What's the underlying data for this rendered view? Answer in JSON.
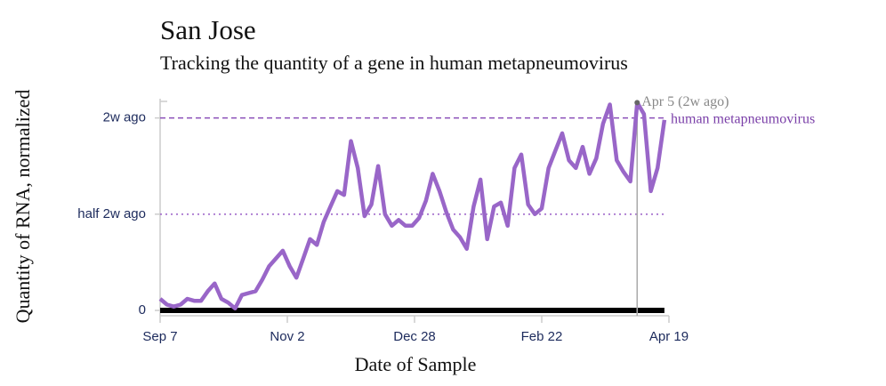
{
  "chart_data": {
    "type": "line",
    "title": "San Jose",
    "subtitle": "Tracking the quantity of a gene in human metapneumovirus",
    "x_label": "Date of Sample",
    "y_label": "Quantity of RNA, normalized",
    "x": [
      "Sep 7",
      "Sep 10",
      "Sep 13",
      "Sep 16",
      "Sep 19",
      "Sep 22",
      "Sep 25",
      "Sep 28",
      "Oct 1",
      "Oct 4",
      "Oct 7",
      "Oct 10",
      "Oct 13",
      "Oct 16",
      "Oct 19",
      "Oct 22",
      "Oct 25",
      "Oct 28",
      "Oct 31",
      "Nov 3",
      "Nov 6",
      "Nov 9",
      "Nov 12",
      "Nov 15",
      "Nov 18",
      "Nov 21",
      "Nov 24",
      "Nov 27",
      "Nov 30",
      "Dec 3",
      "Dec 6",
      "Dec 9",
      "Dec 12",
      "Dec 15",
      "Dec 18",
      "Dec 21",
      "Dec 24",
      "Dec 27",
      "Dec 30",
      "Jan 2",
      "Jan 5",
      "Jan 8",
      "Jan 11",
      "Jan 14",
      "Jan 17",
      "Jan 20",
      "Jan 23",
      "Jan 26",
      "Jan 29",
      "Feb 1",
      "Feb 4",
      "Feb 7",
      "Feb 10",
      "Feb 13",
      "Feb 16",
      "Feb 19",
      "Feb 22",
      "Feb 25",
      "Feb 28",
      "Mar 3",
      "Mar 6",
      "Mar 9",
      "Mar 12",
      "Mar 15",
      "Mar 18",
      "Mar 21",
      "Mar 24",
      "Mar 27",
      "Mar 30",
      "Apr 2",
      "Apr 5",
      "Apr 8",
      "Apr 11",
      "Apr 14",
      "Apr 17"
    ],
    "series": [
      {
        "name": "human metapneumovirus",
        "color": "#9966c8",
        "values": [
          0.06,
          0.03,
          0.02,
          0.03,
          0.06,
          0.05,
          0.05,
          0.1,
          0.14,
          0.06,
          0.04,
          0.01,
          0.08,
          0.09,
          0.1,
          0.16,
          0.23,
          0.27,
          0.31,
          0.23,
          0.17,
          0.27,
          0.37,
          0.34,
          0.46,
          0.54,
          0.62,
          0.6,
          0.88,
          0.74,
          0.49,
          0.55,
          0.75,
          0.5,
          0.44,
          0.47,
          0.44,
          0.44,
          0.48,
          0.57,
          0.71,
          0.62,
          0.51,
          0.42,
          0.38,
          0.32,
          0.54,
          0.68,
          0.37,
          0.54,
          0.56,
          0.44,
          0.74,
          0.81,
          0.55,
          0.5,
          0.53,
          0.74,
          0.83,
          0.92,
          0.78,
          0.74,
          0.85,
          0.71,
          0.79,
          0.97,
          1.07,
          0.78,
          0.72,
          0.67,
          1.08,
          1.02,
          0.62,
          0.74,
          0.99
        ]
      }
    ],
    "xlim": [
      "Sep 7",
      "Apr 19"
    ],
    "xticks": [
      "Sep 7",
      "Nov 2",
      "Dec 28",
      "Feb 22",
      "Apr 19"
    ],
    "ylim": [
      0,
      1.1
    ],
    "yticks": [
      0,
      {
        "value": 0.5,
        "label": "half 2w ago"
      },
      {
        "value": 1,
        "label": "2w ago"
      }
    ],
    "reference_lines": [
      {
        "value": 1,
        "style": "dashed",
        "color": "#8a4fb8"
      },
      {
        "value": 0.5,
        "style": "dotted",
        "color": "#9a5fc8"
      }
    ],
    "annotation": {
      "x": "Apr 5",
      "value": 1.08,
      "label": "Apr 5 (2w ago)"
    }
  }
}
